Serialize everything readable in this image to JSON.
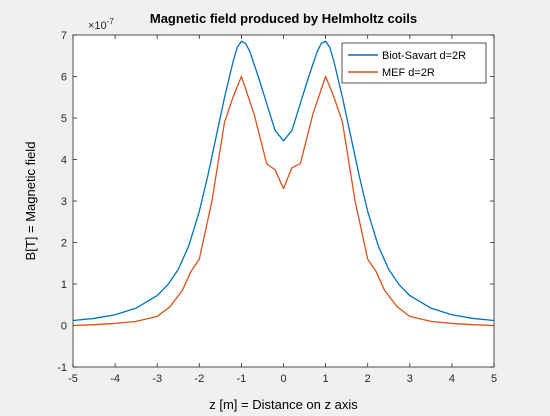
{
  "chart_data": {
    "type": "line",
    "title": "Magnetic field produced by Helmholtz coils",
    "xlabel": "z [m] = Distance on z axis",
    "ylabel": "B[T] = Magnetic field",
    "y_exponent_label": "×10",
    "y_exponent": "-7",
    "xlim": [
      -5,
      5
    ],
    "ylim": [
      -1,
      7
    ],
    "x_ticks": [
      -5,
      -4,
      -3,
      -2,
      -1,
      0,
      1,
      2,
      3,
      4,
      5
    ],
    "y_ticks": [
      -1,
      0,
      1,
      2,
      3,
      4,
      5,
      6,
      7
    ],
    "grid": false,
    "legend_position": "top-right",
    "series": [
      {
        "name": "Biot-Savart d=2R",
        "color": "#0072bd",
        "x": [
          -5,
          -4.5,
          -4,
          -3.5,
          -3,
          -2.75,
          -2.5,
          -2.25,
          -2,
          -1.8,
          -1.6,
          -1.4,
          -1.2,
          -1.1,
          -1,
          -0.9,
          -0.8,
          -0.6,
          -0.4,
          -0.2,
          0,
          0.2,
          0.4,
          0.6,
          0.8,
          0.9,
          1,
          1.1,
          1.2,
          1.4,
          1.6,
          1.8,
          2,
          2.25,
          2.5,
          2.75,
          3,
          3.5,
          4,
          4.5,
          5
        ],
        "y": [
          0.12,
          0.17,
          0.26,
          0.42,
          0.72,
          0.98,
          1.35,
          1.92,
          2.75,
          3.6,
          4.55,
          5.5,
          6.35,
          6.7,
          6.85,
          6.8,
          6.6,
          6.0,
          5.35,
          4.7,
          4.45,
          4.7,
          5.35,
          6.0,
          6.6,
          6.8,
          6.85,
          6.7,
          6.35,
          5.5,
          4.55,
          3.6,
          2.75,
          1.92,
          1.35,
          0.98,
          0.72,
          0.42,
          0.26,
          0.17,
          0.12
        ]
      },
      {
        "name": "MEF d=2R",
        "color": "#d95319",
        "x": [
          -5,
          -4.5,
          -4,
          -3.5,
          -3,
          -2.7,
          -2.4,
          -2.2,
          -2,
          -1.7,
          -1.4,
          -1.2,
          -1,
          -0.7,
          -0.4,
          -0.2,
          0,
          0.2,
          0.4,
          0.7,
          1,
          1.2,
          1.4,
          1.7,
          2,
          2.2,
          2.4,
          2.7,
          3,
          3.5,
          4,
          4.5,
          5
        ],
        "y": [
          0.0,
          0.02,
          0.05,
          0.1,
          0.22,
          0.45,
          0.85,
          1.3,
          1.6,
          3.0,
          4.9,
          5.5,
          6.0,
          5.1,
          3.9,
          3.75,
          3.3,
          3.8,
          3.9,
          5.1,
          6.0,
          5.5,
          4.9,
          3.0,
          1.6,
          1.3,
          0.85,
          0.45,
          0.22,
          0.1,
          0.05,
          0.02,
          0.0
        ]
      }
    ]
  }
}
